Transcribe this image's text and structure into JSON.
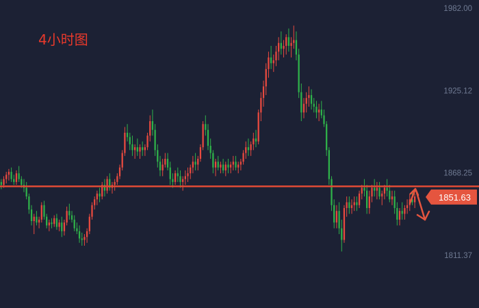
{
  "chart": {
    "timeframe_label": "4小时图"
  },
  "colors": {
    "background": "#1c2134",
    "up": "#e84a3f",
    "down": "#2fb24a",
    "level_line": "#e04a35",
    "price_tag": "#e5553f",
    "tick_text": "#6f7a92"
  },
  "chart_data": {
    "type": "candlestick",
    "title": "",
    "xlabel": "",
    "ylabel": "",
    "ylim": [
      1790,
      1982
    ],
    "y_ticks": [
      "1982.00",
      "1925.12",
      "1868.25",
      "1811.37"
    ],
    "grid": false,
    "horizontal_level": 1859,
    "last_price_label": "1851.63",
    "projection": "up then down zigzag arrow from the last price",
    "candles": [
      {
        "o": 1862,
        "h": 1864,
        "l": 1857,
        "c": 1860
      },
      {
        "o": 1860,
        "h": 1866,
        "l": 1858,
        "c": 1864
      },
      {
        "o": 1864,
        "h": 1869,
        "l": 1861,
        "c": 1867
      },
      {
        "o": 1867,
        "h": 1871,
        "l": 1863,
        "c": 1869
      },
      {
        "o": 1869,
        "h": 1872,
        "l": 1862,
        "c": 1864
      },
      {
        "o": 1864,
        "h": 1867,
        "l": 1860,
        "c": 1862
      },
      {
        "o": 1862,
        "h": 1870,
        "l": 1860,
        "c": 1868
      },
      {
        "o": 1868,
        "h": 1873,
        "l": 1862,
        "c": 1864
      },
      {
        "o": 1864,
        "h": 1866,
        "l": 1858,
        "c": 1860
      },
      {
        "o": 1860,
        "h": 1864,
        "l": 1855,
        "c": 1858
      },
      {
        "o": 1858,
        "h": 1862,
        "l": 1850,
        "c": 1852
      },
      {
        "o": 1852,
        "h": 1854,
        "l": 1840,
        "c": 1843
      },
      {
        "o": 1843,
        "h": 1846,
        "l": 1832,
        "c": 1835
      },
      {
        "o": 1835,
        "h": 1840,
        "l": 1826,
        "c": 1838
      },
      {
        "o": 1838,
        "h": 1842,
        "l": 1832,
        "c": 1834
      },
      {
        "o": 1834,
        "h": 1838,
        "l": 1830,
        "c": 1836
      },
      {
        "o": 1836,
        "h": 1848,
        "l": 1834,
        "c": 1846
      },
      {
        "o": 1846,
        "h": 1849,
        "l": 1836,
        "c": 1838
      },
      {
        "o": 1838,
        "h": 1840,
        "l": 1830,
        "c": 1832
      },
      {
        "o": 1832,
        "h": 1836,
        "l": 1828,
        "c": 1834
      },
      {
        "o": 1834,
        "h": 1837,
        "l": 1830,
        "c": 1833
      },
      {
        "o": 1833,
        "h": 1839,
        "l": 1831,
        "c": 1837
      },
      {
        "o": 1837,
        "h": 1840,
        "l": 1829,
        "c": 1831
      },
      {
        "o": 1831,
        "h": 1836,
        "l": 1828,
        "c": 1834
      },
      {
        "o": 1834,
        "h": 1838,
        "l": 1824,
        "c": 1828
      },
      {
        "o": 1828,
        "h": 1836,
        "l": 1825,
        "c": 1834
      },
      {
        "o": 1834,
        "h": 1845,
        "l": 1832,
        "c": 1842
      },
      {
        "o": 1842,
        "h": 1847,
        "l": 1836,
        "c": 1839
      },
      {
        "o": 1839,
        "h": 1842,
        "l": 1834,
        "c": 1836
      },
      {
        "o": 1836,
        "h": 1839,
        "l": 1828,
        "c": 1830
      },
      {
        "o": 1830,
        "h": 1834,
        "l": 1826,
        "c": 1828
      },
      {
        "o": 1828,
        "h": 1832,
        "l": 1820,
        "c": 1823
      },
      {
        "o": 1823,
        "h": 1827,
        "l": 1818,
        "c": 1822
      },
      {
        "o": 1822,
        "h": 1826,
        "l": 1818,
        "c": 1824
      },
      {
        "o": 1824,
        "h": 1830,
        "l": 1820,
        "c": 1828
      },
      {
        "o": 1828,
        "h": 1840,
        "l": 1826,
        "c": 1838
      },
      {
        "o": 1838,
        "h": 1848,
        "l": 1836,
        "c": 1846
      },
      {
        "o": 1846,
        "h": 1852,
        "l": 1843,
        "c": 1850
      },
      {
        "o": 1850,
        "h": 1856,
        "l": 1846,
        "c": 1854
      },
      {
        "o": 1854,
        "h": 1858,
        "l": 1848,
        "c": 1852
      },
      {
        "o": 1852,
        "h": 1862,
        "l": 1850,
        "c": 1860
      },
      {
        "o": 1860,
        "h": 1864,
        "l": 1852,
        "c": 1856
      },
      {
        "o": 1856,
        "h": 1866,
        "l": 1854,
        "c": 1864
      },
      {
        "o": 1864,
        "h": 1868,
        "l": 1856,
        "c": 1858
      },
      {
        "o": 1858,
        "h": 1862,
        "l": 1854,
        "c": 1860
      },
      {
        "o": 1860,
        "h": 1864,
        "l": 1856,
        "c": 1862
      },
      {
        "o": 1862,
        "h": 1868,
        "l": 1860,
        "c": 1866
      },
      {
        "o": 1866,
        "h": 1874,
        "l": 1864,
        "c": 1872
      },
      {
        "o": 1872,
        "h": 1884,
        "l": 1870,
        "c": 1882
      },
      {
        "o": 1882,
        "h": 1900,
        "l": 1880,
        "c": 1896
      },
      {
        "o": 1896,
        "h": 1902,
        "l": 1890,
        "c": 1893
      },
      {
        "o": 1893,
        "h": 1896,
        "l": 1884,
        "c": 1888
      },
      {
        "o": 1888,
        "h": 1894,
        "l": 1880,
        "c": 1884
      },
      {
        "o": 1884,
        "h": 1888,
        "l": 1878,
        "c": 1886
      },
      {
        "o": 1886,
        "h": 1892,
        "l": 1880,
        "c": 1883
      },
      {
        "o": 1883,
        "h": 1888,
        "l": 1878,
        "c": 1886
      },
      {
        "o": 1886,
        "h": 1890,
        "l": 1880,
        "c": 1884
      },
      {
        "o": 1884,
        "h": 1888,
        "l": 1880,
        "c": 1886
      },
      {
        "o": 1886,
        "h": 1896,
        "l": 1884,
        "c": 1894
      },
      {
        "o": 1894,
        "h": 1908,
        "l": 1890,
        "c": 1904
      },
      {
        "o": 1904,
        "h": 1912,
        "l": 1894,
        "c": 1898
      },
      {
        "o": 1898,
        "h": 1902,
        "l": 1880,
        "c": 1884
      },
      {
        "o": 1884,
        "h": 1888,
        "l": 1872,
        "c": 1876
      },
      {
        "o": 1876,
        "h": 1880,
        "l": 1866,
        "c": 1870
      },
      {
        "o": 1870,
        "h": 1878,
        "l": 1866,
        "c": 1874
      },
      {
        "o": 1874,
        "h": 1882,
        "l": 1872,
        "c": 1878
      },
      {
        "o": 1878,
        "h": 1882,
        "l": 1870,
        "c": 1872
      },
      {
        "o": 1872,
        "h": 1876,
        "l": 1860,
        "c": 1864
      },
      {
        "o": 1864,
        "h": 1868,
        "l": 1858,
        "c": 1862
      },
      {
        "o": 1862,
        "h": 1870,
        "l": 1860,
        "c": 1868
      },
      {
        "o": 1868,
        "h": 1872,
        "l": 1862,
        "c": 1866
      },
      {
        "o": 1866,
        "h": 1870,
        "l": 1858,
        "c": 1862
      },
      {
        "o": 1862,
        "h": 1866,
        "l": 1856,
        "c": 1864
      },
      {
        "o": 1864,
        "h": 1870,
        "l": 1860,
        "c": 1866
      },
      {
        "o": 1866,
        "h": 1872,
        "l": 1862,
        "c": 1868
      },
      {
        "o": 1868,
        "h": 1874,
        "l": 1864,
        "c": 1872
      },
      {
        "o": 1872,
        "h": 1880,
        "l": 1868,
        "c": 1876
      },
      {
        "o": 1876,
        "h": 1882,
        "l": 1870,
        "c": 1874
      },
      {
        "o": 1874,
        "h": 1880,
        "l": 1870,
        "c": 1878
      },
      {
        "o": 1878,
        "h": 1888,
        "l": 1876,
        "c": 1886
      },
      {
        "o": 1886,
        "h": 1904,
        "l": 1884,
        "c": 1902
      },
      {
        "o": 1902,
        "h": 1908,
        "l": 1894,
        "c": 1898
      },
      {
        "o": 1898,
        "h": 1902,
        "l": 1884,
        "c": 1887
      },
      {
        "o": 1887,
        "h": 1892,
        "l": 1878,
        "c": 1882
      },
      {
        "o": 1882,
        "h": 1884,
        "l": 1868,
        "c": 1872
      },
      {
        "o": 1872,
        "h": 1878,
        "l": 1866,
        "c": 1876
      },
      {
        "o": 1876,
        "h": 1880,
        "l": 1870,
        "c": 1872
      },
      {
        "o": 1872,
        "h": 1876,
        "l": 1868,
        "c": 1874
      },
      {
        "o": 1874,
        "h": 1878,
        "l": 1868,
        "c": 1870
      },
      {
        "o": 1870,
        "h": 1876,
        "l": 1866,
        "c": 1874
      },
      {
        "o": 1874,
        "h": 1878,
        "l": 1868,
        "c": 1872
      },
      {
        "o": 1872,
        "h": 1876,
        "l": 1868,
        "c": 1874
      },
      {
        "o": 1874,
        "h": 1880,
        "l": 1870,
        "c": 1876
      },
      {
        "o": 1876,
        "h": 1880,
        "l": 1870,
        "c": 1872
      },
      {
        "o": 1872,
        "h": 1876,
        "l": 1868,
        "c": 1874
      },
      {
        "o": 1874,
        "h": 1878,
        "l": 1870,
        "c": 1876
      },
      {
        "o": 1876,
        "h": 1884,
        "l": 1874,
        "c": 1882
      },
      {
        "o": 1882,
        "h": 1890,
        "l": 1878,
        "c": 1886
      },
      {
        "o": 1886,
        "h": 1892,
        "l": 1880,
        "c": 1884
      },
      {
        "o": 1884,
        "h": 1890,
        "l": 1880,
        "c": 1888
      },
      {
        "o": 1888,
        "h": 1896,
        "l": 1884,
        "c": 1892
      },
      {
        "o": 1892,
        "h": 1898,
        "l": 1886,
        "c": 1890
      },
      {
        "o": 1890,
        "h": 1912,
        "l": 1888,
        "c": 1910
      },
      {
        "o": 1910,
        "h": 1924,
        "l": 1904,
        "c": 1920
      },
      {
        "o": 1920,
        "h": 1932,
        "l": 1914,
        "c": 1928
      },
      {
        "o": 1928,
        "h": 1944,
        "l": 1922,
        "c": 1940
      },
      {
        "o": 1940,
        "h": 1952,
        "l": 1934,
        "c": 1948
      },
      {
        "o": 1948,
        "h": 1956,
        "l": 1940,
        "c": 1944
      },
      {
        "o": 1944,
        "h": 1950,
        "l": 1938,
        "c": 1946
      },
      {
        "o": 1946,
        "h": 1956,
        "l": 1942,
        "c": 1952
      },
      {
        "o": 1952,
        "h": 1962,
        "l": 1946,
        "c": 1958
      },
      {
        "o": 1958,
        "h": 1966,
        "l": 1950,
        "c": 1954
      },
      {
        "o": 1954,
        "h": 1960,
        "l": 1948,
        "c": 1956
      },
      {
        "o": 1956,
        "h": 1964,
        "l": 1950,
        "c": 1962
      },
      {
        "o": 1962,
        "h": 1968,
        "l": 1952,
        "c": 1956
      },
      {
        "o": 1956,
        "h": 1962,
        "l": 1948,
        "c": 1958
      },
      {
        "o": 1958,
        "h": 1970,
        "l": 1954,
        "c": 1960
      },
      {
        "o": 1960,
        "h": 1966,
        "l": 1946,
        "c": 1950
      },
      {
        "o": 1950,
        "h": 1954,
        "l": 1920,
        "c": 1924
      },
      {
        "o": 1924,
        "h": 1930,
        "l": 1904,
        "c": 1910
      },
      {
        "o": 1910,
        "h": 1920,
        "l": 1906,
        "c": 1916
      },
      {
        "o": 1916,
        "h": 1924,
        "l": 1910,
        "c": 1920
      },
      {
        "o": 1920,
        "h": 1928,
        "l": 1914,
        "c": 1922
      },
      {
        "o": 1922,
        "h": 1926,
        "l": 1912,
        "c": 1916
      },
      {
        "o": 1916,
        "h": 1920,
        "l": 1910,
        "c": 1914
      },
      {
        "o": 1914,
        "h": 1918,
        "l": 1906,
        "c": 1910
      },
      {
        "o": 1910,
        "h": 1916,
        "l": 1904,
        "c": 1912
      },
      {
        "o": 1912,
        "h": 1918,
        "l": 1906,
        "c": 1908
      },
      {
        "o": 1908,
        "h": 1912,
        "l": 1900,
        "c": 1902
      },
      {
        "o": 1902,
        "h": 1904,
        "l": 1880,
        "c": 1884
      },
      {
        "o": 1884,
        "h": 1886,
        "l": 1860,
        "c": 1864
      },
      {
        "o": 1864,
        "h": 1866,
        "l": 1842,
        "c": 1846
      },
      {
        "o": 1846,
        "h": 1850,
        "l": 1830,
        "c": 1834
      },
      {
        "o": 1834,
        "h": 1846,
        "l": 1830,
        "c": 1842
      },
      {
        "o": 1842,
        "h": 1848,
        "l": 1826,
        "c": 1830
      },
      {
        "o": 1830,
        "h": 1836,
        "l": 1814,
        "c": 1822
      },
      {
        "o": 1822,
        "h": 1846,
        "l": 1820,
        "c": 1844
      },
      {
        "o": 1844,
        "h": 1852,
        "l": 1838,
        "c": 1848
      },
      {
        "o": 1848,
        "h": 1852,
        "l": 1840,
        "c": 1844
      },
      {
        "o": 1844,
        "h": 1850,
        "l": 1840,
        "c": 1846
      },
      {
        "o": 1846,
        "h": 1852,
        "l": 1842,
        "c": 1848
      },
      {
        "o": 1848,
        "h": 1852,
        "l": 1842,
        "c": 1846
      },
      {
        "o": 1846,
        "h": 1856,
        "l": 1844,
        "c": 1854
      },
      {
        "o": 1854,
        "h": 1860,
        "l": 1850,
        "c": 1858
      },
      {
        "o": 1858,
        "h": 1864,
        "l": 1852,
        "c": 1856
      },
      {
        "o": 1856,
        "h": 1860,
        "l": 1840,
        "c": 1844
      },
      {
        "o": 1844,
        "h": 1856,
        "l": 1840,
        "c": 1852
      },
      {
        "o": 1852,
        "h": 1860,
        "l": 1848,
        "c": 1858
      },
      {
        "o": 1858,
        "h": 1864,
        "l": 1852,
        "c": 1856
      },
      {
        "o": 1856,
        "h": 1862,
        "l": 1850,
        "c": 1858
      },
      {
        "o": 1858,
        "h": 1862,
        "l": 1850,
        "c": 1852
      },
      {
        "o": 1852,
        "h": 1856,
        "l": 1846,
        "c": 1854
      },
      {
        "o": 1854,
        "h": 1860,
        "l": 1850,
        "c": 1858
      },
      {
        "o": 1858,
        "h": 1864,
        "l": 1852,
        "c": 1856
      },
      {
        "o": 1856,
        "h": 1860,
        "l": 1848,
        "c": 1850
      },
      {
        "o": 1850,
        "h": 1856,
        "l": 1846,
        "c": 1852
      },
      {
        "o": 1852,
        "h": 1856,
        "l": 1840,
        "c": 1844
      },
      {
        "o": 1844,
        "h": 1848,
        "l": 1832,
        "c": 1836
      },
      {
        "o": 1836,
        "h": 1844,
        "l": 1832,
        "c": 1842
      },
      {
        "o": 1842,
        "h": 1848,
        "l": 1836,
        "c": 1840
      },
      {
        "o": 1840,
        "h": 1846,
        "l": 1836,
        "c": 1844
      },
      {
        "o": 1844,
        "h": 1850,
        "l": 1840,
        "c": 1846
      },
      {
        "o": 1846,
        "h": 1854,
        "l": 1842,
        "c": 1850
      },
      {
        "o": 1850,
        "h": 1856,
        "l": 1846,
        "c": 1848
      },
      {
        "o": 1848,
        "h": 1854,
        "l": 1844,
        "c": 1852
      }
    ]
  }
}
